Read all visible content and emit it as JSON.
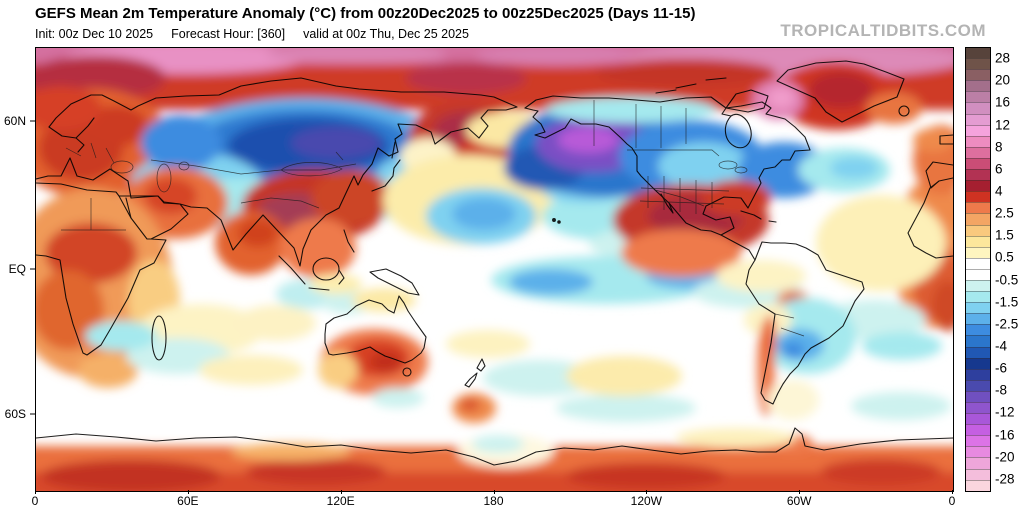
{
  "header": {
    "title": "GEFS Mean 2m Temperature Anomaly (°C) from 00z20Dec2025 to 00z25Dec2025 (Days 11-15)",
    "init": "Init: 00z Dec 10 2025",
    "forecast_hour": "Forecast Hour: [360]",
    "valid": "valid at 00z Thu, Dec 25 2025",
    "watermark": "TROPICALTIDBITS.COM"
  },
  "axes": {
    "x_labels": [
      "0",
      "60E",
      "120E",
      "180",
      "120W",
      "60W",
      "0"
    ],
    "y_labels": [
      "60N",
      "EQ",
      "60S"
    ]
  },
  "colorbar": {
    "tick_labels": [
      "28",
      "20",
      "16",
      "12",
      "8",
      "6",
      "4",
      "2.5",
      "1.5",
      "0.5",
      "-0.5",
      "-1.5",
      "-2.5",
      "-4",
      "-6",
      "-8",
      "-12",
      "-16",
      "-20",
      "-28"
    ],
    "colors_top_to_bottom": [
      "#57433b",
      "#6f5349",
      "#8a5f63",
      "#a36f8b",
      "#bb7fa6",
      "#d18fc0",
      "#e49cd2",
      "#f5a3dd",
      "#ee8cc0",
      "#de6f9e",
      "#ca4d76",
      "#b23253",
      "#a51f30",
      "#cf3222",
      "#ee7a4b",
      "#f3a564",
      "#f9c97e",
      "#fce79c",
      "#fef5c0",
      "#ffffff",
      "#ffffff",
      "#cdf2ef",
      "#a5e9ee",
      "#7fd1f0",
      "#5cb0ea",
      "#3d8ce0",
      "#2b76cc",
      "#2058b4",
      "#16388e",
      "#2e3f9e",
      "#4a4aae",
      "#7050c0",
      "#8f55cd",
      "#a957d9",
      "#c55fe2",
      "#dc73e6",
      "#e78ae0",
      "#eea6da",
      "#f4bedc",
      "#fad6de"
    ]
  },
  "chart_data": {
    "type": "heatmap",
    "title": "GEFS Mean 2m Temperature Anomaly (°C) from 00z20Dec2025 to 00z25Dec2025 (Days 11-15)",
    "units": "°C",
    "projection": "equirectangular world map centered on 180° longitude",
    "x_ticks_longitude": [
      "0",
      "60E",
      "120E",
      "180",
      "120W",
      "60W",
      "0"
    ],
    "y_ticks_latitude": [
      "60N",
      "EQ",
      "60S"
    ],
    "colorbar_ticks": [
      28,
      20,
      16,
      12,
      8,
      6,
      4,
      2.5,
      1.5,
      0.5,
      -0.5,
      -1.5,
      -2.5,
      -4,
      -6,
      -8,
      -12,
      -16,
      -20,
      -28
    ],
    "notable_anomalies": [
      {
        "region": "Arctic basin rim / high Arctic",
        "anomaly_c": "+8 to +16"
      },
      {
        "region": "Siberia / western Russia / Kazakhstan",
        "anomaly_c": "-4 to -10"
      },
      {
        "region": "Alaska / Yukon / northwest Canada",
        "anomaly_c": "-8 to -16"
      },
      {
        "region": "Central and eastern Canada",
        "anomaly_c": "-2 to -8"
      },
      {
        "region": "Contiguous United States",
        "anomaly_c": "+4 to +8"
      },
      {
        "region": "Baffin Bay / west Greenland",
        "anomaly_c": "+8 to +16"
      },
      {
        "region": "Europe / Scandinavia",
        "anomaly_c": "+2 to +6"
      },
      {
        "region": "Tibetan Plateau / China",
        "anomaly_c": "+4 to +8"
      },
      {
        "region": "Northeast Siberia / Chukotka",
        "anomaly_c": "+4 to +8"
      },
      {
        "region": "Australia interior",
        "anomaly_c": "+2 to +6"
      },
      {
        "region": "Equatorial central Pacific",
        "anomaly_c": "-1 to -3"
      },
      {
        "region": "Brazil / Paraguay",
        "anomaly_c": "-1 to -4"
      },
      {
        "region": "Antarctic coast",
        "anomaly_c": "+2 to +6"
      }
    ]
  }
}
